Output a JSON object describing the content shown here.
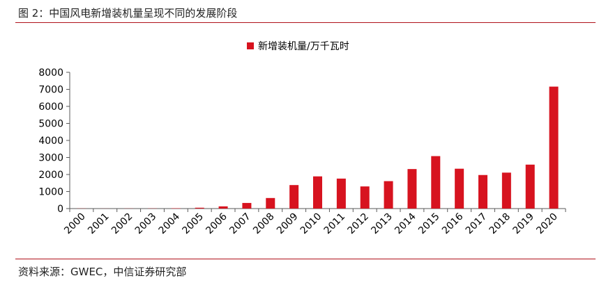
{
  "figure": {
    "title": "图 2：中国风电新增装机量呈现不同的发展阶段",
    "source": "资料来源：GWEC，中信证券研究部"
  },
  "colors": {
    "bar": "#d7131f",
    "rule": "#b01019",
    "axis": "#595959"
  },
  "chart_data": {
    "type": "bar",
    "title": "",
    "xlabel": "",
    "ylabel": "",
    "categories": [
      "2000",
      "2001",
      "2002",
      "2003",
      "2004",
      "2005",
      "2006",
      "2007",
      "2008",
      "2009",
      "2010",
      "2011",
      "2012",
      "2013",
      "2014",
      "2015",
      "2016",
      "2017",
      "2018",
      "2019",
      "2020"
    ],
    "series": [
      {
        "name": "新增装机量/万千瓦时",
        "values": [
          8,
          4,
          7,
          10,
          20,
          50,
          130,
          330,
          620,
          1380,
          1890,
          1760,
          1300,
          1610,
          2320,
          3080,
          2340,
          1970,
          2110,
          2580,
          7160
        ]
      }
    ],
    "ylim": [
      0,
      8000
    ],
    "yticks": [
      0,
      1000,
      2000,
      3000,
      4000,
      5000,
      6000,
      7000,
      8000
    ],
    "grid": false,
    "legend_position": "top-center"
  }
}
